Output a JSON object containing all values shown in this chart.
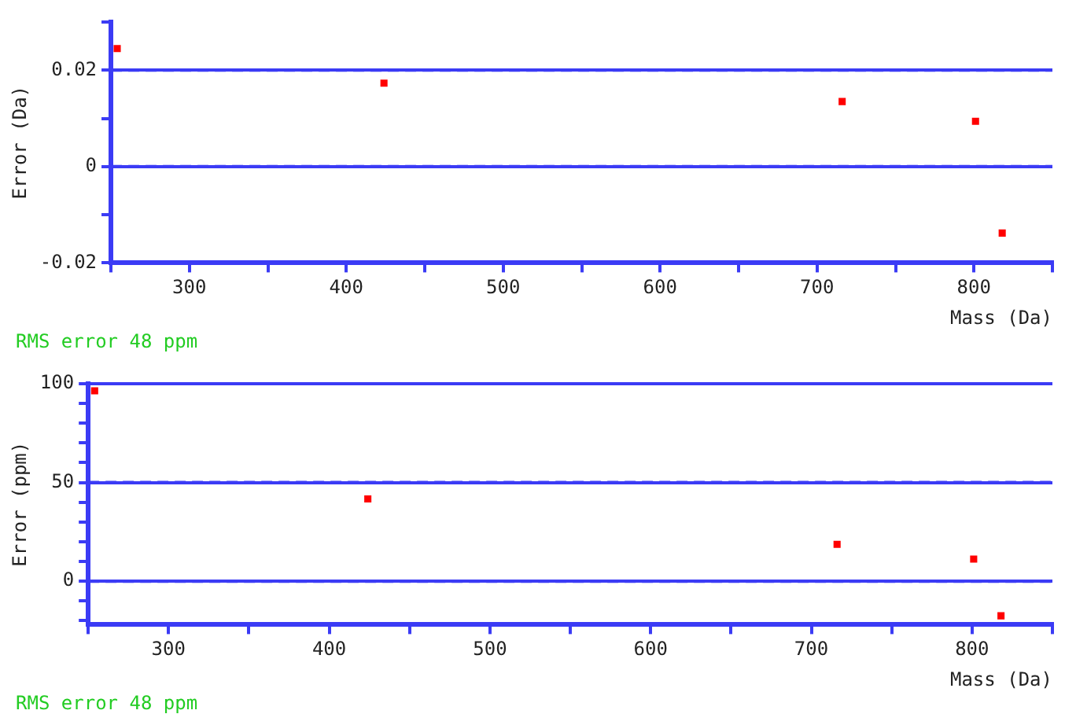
{
  "chart_data": [
    {
      "type": "scatter",
      "ylabel": "Error (Da)",
      "xlabel": "Mass (Da)",
      "annotations": [
        "RMS error 48 ppm"
      ],
      "x": [
        254,
        424,
        716,
        801,
        818
      ],
      "series": [
        {
          "color": "#ff0000",
          "values": [
            0.0245,
            0.0173,
            0.0135,
            0.0094,
            -0.0138
          ]
        }
      ],
      "xlim": [
        250,
        850
      ],
      "xticks": [
        {
          "value": 250,
          "label": null
        },
        300,
        {
          "value": 350,
          "label": null
        },
        400,
        {
          "value": 450,
          "label": null
        },
        500,
        {
          "value": 550,
          "label": null
        },
        600,
        {
          "value": 650,
          "label": null
        },
        700,
        {
          "value": 750,
          "label": null
        },
        800,
        {
          "value": 850,
          "label": null
        }
      ],
      "ylim": [
        -0.02,
        0.03
      ],
      "yticks": [
        -0.02,
        {
          "value": -0.01,
          "label": null
        },
        0,
        {
          "value": 0.01,
          "label": null
        },
        0.02,
        {
          "value": 0.03,
          "label": null
        }
      ],
      "grid": "y",
      "marker": "square",
      "legend": false
    },
    {
      "type": "scatter",
      "ylabel": "Error (ppm)",
      "xlabel": "Mass (Da)",
      "annotations": [
        "RMS error 48 ppm"
      ],
      "x": [
        254,
        424,
        716,
        801,
        818
      ],
      "series": [
        {
          "color": "#ff0000",
          "values": [
            96.4,
            41.7,
            18.7,
            11.2,
            -17.5
          ]
        }
      ],
      "xlim": [
        250,
        850
      ],
      "xticks": [
        {
          "value": 250,
          "label": null
        },
        300,
        {
          "value": 350,
          "label": null
        },
        400,
        {
          "value": 450,
          "label": null
        },
        500,
        {
          "value": 550,
          "label": null
        },
        600,
        {
          "value": 650,
          "label": null
        },
        700,
        {
          "value": 750,
          "label": null
        },
        800,
        {
          "value": 850,
          "label": null
        }
      ],
      "ylim": [
        -22,
        100
      ],
      "yticks": [
        {
          "value": -20,
          "label": null
        },
        {
          "value": -10,
          "label": null
        },
        0,
        {
          "value": 10,
          "label": null
        },
        {
          "value": 20,
          "label": null
        },
        {
          "value": 30,
          "label": null
        },
        {
          "value": 40,
          "label": null
        },
        50,
        {
          "value": 60,
          "label": null
        },
        {
          "value": 70,
          "label": null
        },
        {
          "value": 80,
          "label": null
        },
        {
          "value": 90,
          "label": null
        },
        100
      ],
      "grid": "y",
      "marker": "square",
      "legend": false
    }
  ]
}
